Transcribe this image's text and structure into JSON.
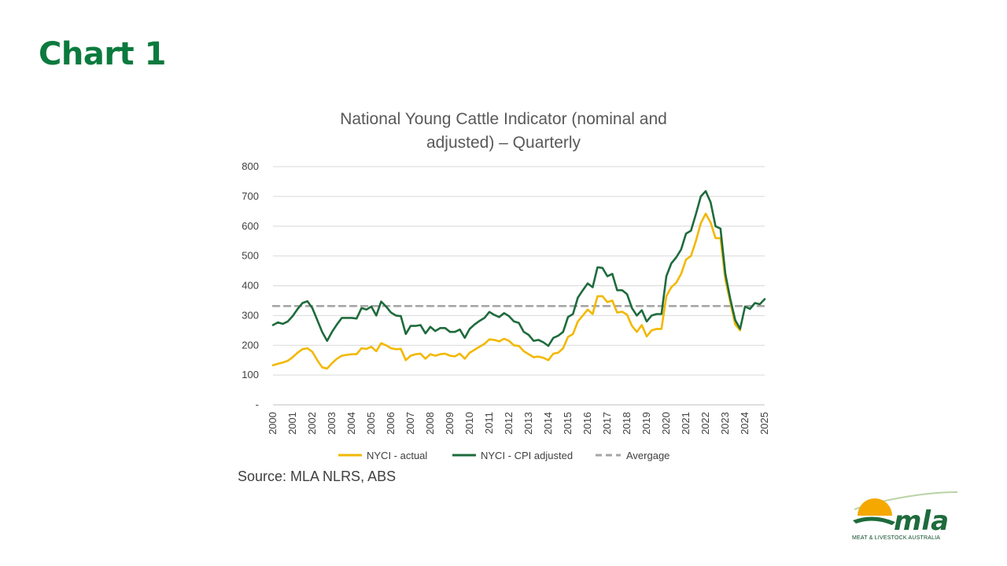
{
  "slide": {
    "title": "Chart 1",
    "source": "Source: MLA NLRS, ABS"
  },
  "logo": {
    "wordmark": "mla",
    "tagline": "MEAT & LIVESTOCK AUSTRALIA"
  },
  "colors": {
    "heading": "#0b7a3e",
    "actual": "#f2b800",
    "adjusted": "#1e6b3c",
    "average": "#a6a6a6"
  },
  "chart_data": {
    "type": "line",
    "title_lines": [
      "National Young Cattle Indicator (nominal and",
      "adjusted) – Quarterly"
    ],
    "x_ticks": [
      "2000",
      "2001",
      "2002",
      "2003",
      "2004",
      "2005",
      "2006",
      "2007",
      "2008",
      "2009",
      "2010",
      "2011",
      "2012",
      "2013",
      "2014",
      "2015",
      "2016",
      "2017",
      "2018",
      "2019",
      "2020",
      "2021",
      "2022",
      "2023",
      "2024",
      "2025"
    ],
    "y_ticks": [
      "-",
      "100",
      "200",
      "300",
      "400",
      "500",
      "600",
      "700",
      "800"
    ],
    "ylim": [
      0,
      800
    ],
    "xlim": [
      2000,
      2025
    ],
    "grid": "horizontal",
    "legend_position": "bottom",
    "series": [
      {
        "name": "NYCI - actual",
        "x": [
          2000,
          2000.25,
          2000.5,
          2000.75,
          2001,
          2001.25,
          2001.5,
          2001.75,
          2002,
          2002.25,
          2002.5,
          2002.75,
          2003,
          2003.25,
          2003.5,
          2003.75,
          2004,
          2004.25,
          2004.5,
          2004.75,
          2005,
          2005.25,
          2005.5,
          2005.75,
          2006,
          2006.25,
          2006.5,
          2006.75,
          2007,
          2007.25,
          2007.5,
          2007.75,
          2008,
          2008.25,
          2008.5,
          2008.75,
          2009,
          2009.25,
          2009.5,
          2009.75,
          2010,
          2010.25,
          2010.5,
          2010.75,
          2011,
          2011.25,
          2011.5,
          2011.75,
          2012,
          2012.25,
          2012.5,
          2012.75,
          2013,
          2013.25,
          2013.5,
          2013.75,
          2014,
          2014.25,
          2014.5,
          2014.75,
          2015,
          2015.25,
          2015.5,
          2015.75,
          2016,
          2016.25,
          2016.5,
          2016.75,
          2017,
          2017.25,
          2017.5,
          2017.75,
          2018,
          2018.25,
          2018.5,
          2018.75,
          2019,
          2019.25,
          2019.5,
          2019.75,
          2020,
          2020.25,
          2020.5,
          2020.75,
          2021,
          2021.25,
          2021.5,
          2021.75,
          2022,
          2022.25,
          2022.5,
          2022.75,
          2023,
          2023.25,
          2023.5,
          2023.75
        ],
        "y": [
          133,
          138,
          142,
          148,
          160,
          175,
          187,
          190,
          178,
          150,
          126,
          122,
          140,
          155,
          165,
          168,
          170,
          170,
          190,
          188,
          195,
          180,
          207,
          200,
          190,
          187,
          188,
          150,
          165,
          170,
          172,
          155,
          170,
          165,
          170,
          172,
          165,
          163,
          172,
          155,
          175,
          185,
          195,
          205,
          220,
          218,
          213,
          222,
          215,
          200,
          198,
          180,
          170,
          160,
          162,
          158,
          150,
          172,
          175,
          190,
          228,
          238,
          280,
          300,
          320,
          305,
          365,
          365,
          345,
          350,
          310,
          313,
          303,
          265,
          245,
          268,
          230,
          250,
          255,
          255,
          365,
          395,
          410,
          440,
          488,
          500,
          550,
          610,
          642,
          612,
          560,
          560,
          420,
          345,
          270,
          250
        ]
      },
      {
        "name": "NYCI - CPI adjusted",
        "x": [
          2000,
          2000.25,
          2000.5,
          2000.75,
          2001,
          2001.25,
          2001.5,
          2001.75,
          2002,
          2002.25,
          2002.5,
          2002.75,
          2003,
          2003.25,
          2003.5,
          2003.75,
          2004,
          2004.25,
          2004.5,
          2004.75,
          2005,
          2005.25,
          2005.5,
          2005.75,
          2006,
          2006.25,
          2006.5,
          2006.75,
          2007,
          2007.25,
          2007.5,
          2007.75,
          2008,
          2008.25,
          2008.5,
          2008.75,
          2009,
          2009.25,
          2009.5,
          2009.75,
          2010,
          2010.25,
          2010.5,
          2010.75,
          2011,
          2011.25,
          2011.5,
          2011.75,
          2012,
          2012.25,
          2012.5,
          2012.75,
          2013,
          2013.25,
          2013.5,
          2013.75,
          2014,
          2014.25,
          2014.5,
          2014.75,
          2015,
          2015.25,
          2015.5,
          2015.75,
          2016,
          2016.25,
          2016.5,
          2016.75,
          2017,
          2017.25,
          2017.5,
          2017.75,
          2018,
          2018.25,
          2018.5,
          2018.75,
          2019,
          2019.25,
          2019.5,
          2019.75,
          2020,
          2020.25,
          2020.5,
          2020.75,
          2021,
          2021.25,
          2021.5,
          2021.75,
          2022,
          2022.25,
          2022.5,
          2022.75,
          2023,
          2023.25,
          2023.5,
          2023.75,
          2024,
          2024.25,
          2024.5,
          2024.75,
          2025
        ],
        "y": [
          268,
          277,
          272,
          280,
          298,
          322,
          342,
          348,
          325,
          285,
          245,
          215,
          245,
          270,
          292,
          292,
          292,
          290,
          325,
          320,
          330,
          300,
          347,
          330,
          310,
          300,
          298,
          238,
          265,
          265,
          268,
          240,
          262,
          248,
          258,
          258,
          245,
          245,
          253,
          225,
          255,
          270,
          282,
          292,
          312,
          302,
          295,
          308,
          298,
          280,
          275,
          245,
          235,
          215,
          218,
          210,
          198,
          225,
          232,
          245,
          295,
          305,
          360,
          385,
          408,
          395,
          462,
          460,
          432,
          440,
          385,
          385,
          372,
          325,
          300,
          318,
          280,
          300,
          305,
          305,
          432,
          475,
          495,
          522,
          575,
          585,
          640,
          700,
          718,
          680,
          600,
          592,
          440,
          355,
          285,
          255,
          330,
          322,
          342,
          338,
          355
        ]
      },
      {
        "name": "Avergage",
        "x": [
          2000,
          2025
        ],
        "y": [
          332,
          332
        ]
      }
    ]
  }
}
